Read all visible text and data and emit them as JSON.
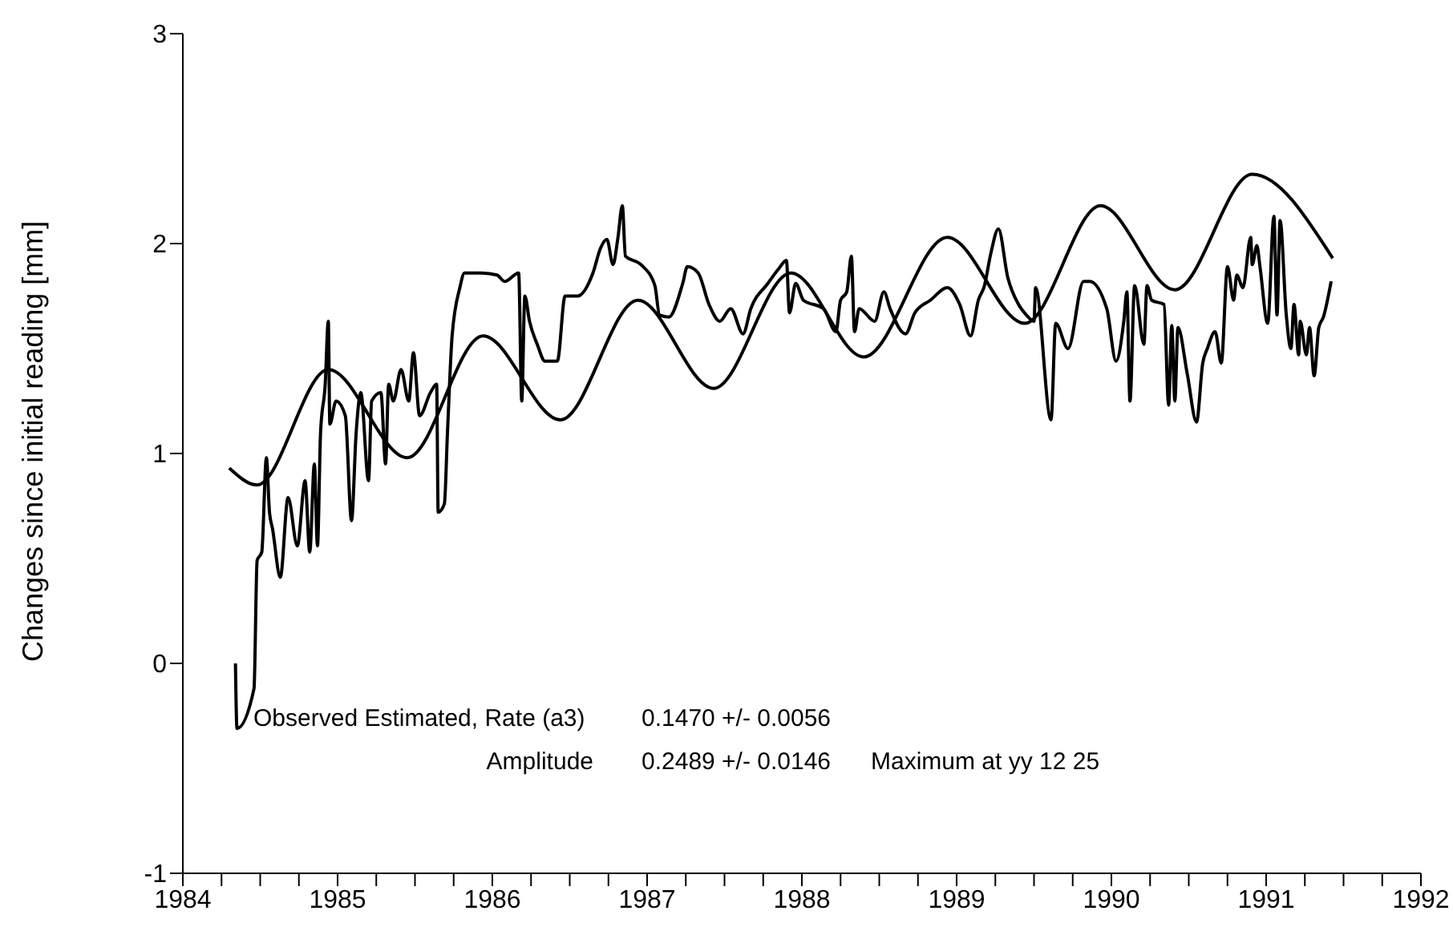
{
  "chart_data": {
    "type": "line",
    "ylabel": "Changes since initial reading [mm]",
    "xlim": [
      1984,
      1992
    ],
    "ylim": [
      -1,
      3
    ],
    "xticks": [
      1984,
      {
        "value": 1984.25,
        "label": null
      },
      {
        "value": 1984.5,
        "label": null
      },
      {
        "value": 1984.75,
        "label": null
      },
      1985,
      {
        "value": 1985.25,
        "label": null
      },
      {
        "value": 1985.5,
        "label": null
      },
      {
        "value": 1985.75,
        "label": null
      },
      1986,
      {
        "value": 1986.25,
        "label": null
      },
      {
        "value": 1986.5,
        "label": null
      },
      {
        "value": 1986.75,
        "label": null
      },
      1987,
      {
        "value": 1987.25,
        "label": null
      },
      {
        "value": 1987.5,
        "label": null
      },
      {
        "value": 1987.75,
        "label": null
      },
      1988,
      {
        "value": 1988.25,
        "label": null
      },
      {
        "value": 1988.5,
        "label": null
      },
      {
        "value": 1988.75,
        "label": null
      },
      1989,
      {
        "value": 1989.25,
        "label": null
      },
      {
        "value": 1989.5,
        "label": null
      },
      {
        "value": 1989.75,
        "label": null
      },
      1990,
      {
        "value": 1990.25,
        "label": null
      },
      {
        "value": 1990.5,
        "label": null
      },
      {
        "value": 1990.75,
        "label": null
      },
      1991,
      {
        "value": 1991.25,
        "label": null
      },
      {
        "value": 1991.5,
        "label": null
      },
      {
        "value": 1991.75,
        "label": null
      },
      1992
    ],
    "yticks": [
      -1,
      0,
      1,
      2,
      3
    ],
    "grid": false,
    "legend": false,
    "marker": "none",
    "line_style": "solid",
    "annotations": [
      "Observed Estimated, Rate (a3)",
      "0.1470 +/- 0.0056",
      "Amplitude",
      "0.2489 +/- 0.0146",
      "Maximum at yy 12 25"
    ],
    "series": [
      {
        "color": "#000000",
        "x": [
          1984.34,
          1984.35,
          1984.46,
          1984.48,
          1984.51,
          1984.54,
          1984.56,
          1984.58,
          1984.63,
          1984.68,
          1984.74,
          1984.79,
          1984.82,
          1984.85,
          1984.87,
          1984.89,
          1984.92,
          1984.94,
          1984.95,
          1984.99,
          1985.05,
          1985.09,
          1985.12,
          1985.15,
          1985.2,
          1985.22,
          1985.28,
          1985.31,
          1985.33,
          1985.36,
          1985.41,
          1985.46,
          1985.49,
          1985.53,
          1985.6,
          1985.64,
          1985.65,
          1985.69,
          1985.71,
          1985.74,
          1985.79,
          1985.82,
          1985.93,
          1986.03,
          1986.08,
          1986.17,
          1986.19,
          1986.21,
          1986.24,
          1986.29,
          1986.34,
          1986.42,
          1986.47,
          1986.55,
          1986.65,
          1986.7,
          1986.74,
          1986.78,
          1986.81,
          1986.84,
          1986.86,
          1986.96,
          1987.05,
          1987.08,
          1987.14,
          1987.23,
          1987.26,
          1987.33,
          1987.4,
          1987.47,
          1987.54,
          1987.62,
          1987.67,
          1987.78,
          1987.85,
          1987.9,
          1987.92,
          1987.96,
          1988.01,
          1988.14,
          1988.22,
          1988.25,
          1988.29,
          1988.32,
          1988.34,
          1988.37,
          1988.47,
          1988.53,
          1988.57,
          1988.67,
          1988.73,
          1988.83,
          1988.94,
          1989.02,
          1989.09,
          1989.14,
          1989.18,
          1989.22,
          1989.27,
          1989.33,
          1989.4,
          1989.45,
          1989.5,
          1989.51,
          1989.61,
          1989.64,
          1989.72,
          1989.82,
          1989.86,
          1989.97,
          1990.03,
          1990.08,
          1990.1,
          1990.12,
          1990.15,
          1990.21,
          1990.23,
          1990.26,
          1990.34,
          1990.37,
          1990.39,
          1990.41,
          1990.43,
          1990.49,
          1990.55,
          1990.59,
          1990.62,
          1990.67,
          1990.71,
          1990.75,
          1990.79,
          1990.81,
          1990.85,
          1990.9,
          1990.91,
          1990.94,
          1990.96,
          1991.01,
          1991.05,
          1991.07,
          1991.09,
          1991.13,
          1991.16,
          1991.18,
          1991.21,
          1991.22,
          1991.26,
          1991.28,
          1991.31,
          1991.34,
          1991.37,
          1991.42
        ],
        "values": [
          0.0,
          -0.31,
          -0.12,
          0.49,
          0.53,
          0.98,
          0.72,
          0.64,
          0.41,
          0.79,
          0.56,
          0.87,
          0.53,
          0.95,
          0.56,
          1.1,
          1.33,
          1.63,
          1.14,
          1.25,
          1.18,
          0.68,
          1.1,
          1.29,
          0.87,
          1.25,
          1.29,
          0.95,
          1.33,
          1.25,
          1.4,
          1.25,
          1.48,
          1.18,
          1.29,
          1.33,
          0.72,
          0.76,
          1.1,
          1.56,
          1.79,
          1.86,
          1.86,
          1.85,
          1.82,
          1.86,
          1.25,
          1.75,
          1.63,
          1.52,
          1.44,
          1.44,
          1.75,
          1.75,
          1.86,
          1.98,
          2.02,
          1.9,
          2.02,
          2.18,
          1.94,
          1.9,
          1.8,
          1.66,
          1.65,
          1.81,
          1.89,
          1.86,
          1.71,
          1.63,
          1.69,
          1.57,
          1.69,
          1.81,
          1.88,
          1.92,
          1.67,
          1.81,
          1.73,
          1.69,
          1.58,
          1.73,
          1.77,
          1.94,
          1.58,
          1.69,
          1.63,
          1.77,
          1.69,
          1.57,
          1.67,
          1.73,
          1.79,
          1.71,
          1.56,
          1.73,
          1.8,
          1.95,
          2.07,
          1.84,
          1.71,
          1.66,
          1.63,
          1.79,
          1.16,
          1.62,
          1.5,
          1.82,
          1.82,
          1.69,
          1.44,
          1.63,
          1.77,
          1.25,
          1.8,
          1.52,
          1.8,
          1.73,
          1.71,
          1.23,
          1.61,
          1.25,
          1.6,
          1.38,
          1.15,
          1.43,
          1.5,
          1.58,
          1.43,
          1.89,
          1.73,
          1.85,
          1.79,
          2.03,
          1.9,
          1.99,
          1.89,
          1.62,
          2.13,
          1.66,
          2.11,
          1.66,
          1.5,
          1.71,
          1.47,
          1.63,
          1.47,
          1.6,
          1.37,
          1.6,
          1.65,
          1.82
        ]
      },
      {
        "color": "#000000",
        "x": [
          1984.3,
          1984.48,
          1984.94,
          1985.45,
          1985.94,
          1986.44,
          1986.94,
          1987.43,
          1987.93,
          1988.4,
          1988.94,
          1989.44,
          1989.93,
          1990.41,
          1990.91,
          1991.43
        ],
        "values": [
          0.93,
          0.85,
          1.4,
          0.98,
          1.56,
          1.16,
          1.73,
          1.31,
          1.86,
          1.46,
          2.03,
          1.62,
          2.18,
          1.78,
          2.33,
          1.93
        ]
      }
    ]
  }
}
